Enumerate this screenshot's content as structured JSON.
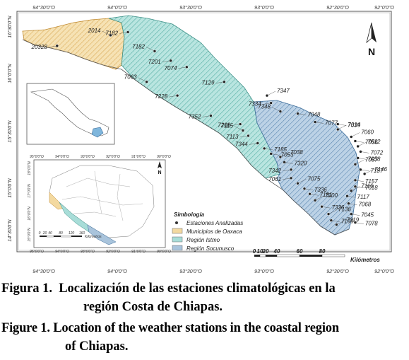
{
  "map": {
    "top_ticks": [
      "94°30'0\"O",
      "94°0'0\"O",
      "93°30'0\"O",
      "93°0'0\"O",
      "92°30'0\"O",
      "92°0'0\"O"
    ],
    "bottom_ticks": [
      "94°30'0\"O",
      "94°0'0\"O",
      "93°30'0\"O",
      "93°0'0\"O",
      "92°30'0\"O",
      "92°0'0\"O"
    ],
    "left_ticks": [
      "16°30'0\"N",
      "16°0'0\"N",
      "15°30'0\"N",
      "15°0'0\"N",
      "14°30'0\"N"
    ],
    "stations": [
      {
        "id": "2014",
        "lon": -94.05,
        "lat": 16.42
      },
      {
        "id": "20328",
        "lon": -94.45,
        "lat": 16.32
      },
      {
        "id": "7182",
        "lon": -93.92,
        "lat": 16.45
      },
      {
        "id": "7182",
        "lon": -93.72,
        "lat": 16.27
      },
      {
        "id": "7201",
        "lon": -93.6,
        "lat": 16.18
      },
      {
        "id": "7074",
        "lon": -93.48,
        "lat": 16.12
      },
      {
        "id": "7063",
        "lon": -93.78,
        "lat": 15.98
      },
      {
        "id": "7129",
        "lon": -93.2,
        "lat": 15.98
      },
      {
        "id": "7228",
        "lon": -93.55,
        "lat": 15.85
      },
      {
        "id": "7347",
        "lon": -92.88,
        "lat": 15.85
      },
      {
        "id": "7334",
        "lon": -92.85,
        "lat": 15.78
      },
      {
        "id": "7352",
        "lon": -93.3,
        "lat": 15.66
      },
      {
        "id": "7348",
        "lon": -92.78,
        "lat": 15.7
      },
      {
        "id": "7048",
        "lon": -92.65,
        "lat": 15.68
      },
      {
        "id": "7208",
        "lon": -93.08,
        "lat": 15.58
      },
      {
        "id": "7115",
        "lon": -93.06,
        "lat": 15.52
      },
      {
        "id": "7077",
        "lon": -92.52,
        "lat": 15.6
      },
      {
        "id": "7339",
        "lon": -92.35,
        "lat": 15.58
      },
      {
        "id": "7014",
        "lon": -92.35,
        "lat": 15.53
      },
      {
        "id": "7113",
        "lon": -93.02,
        "lat": 15.47
      },
      {
        "id": "7344",
        "lon": -92.95,
        "lat": 15.4
      },
      {
        "id": "7060",
        "lon": -92.25,
        "lat": 15.46
      },
      {
        "id": "7056",
        "lon": -92.22,
        "lat": 15.42
      },
      {
        "id": "7185",
        "lon": -92.9,
        "lat": 15.35
      },
      {
        "id": "7012",
        "lon": -92.2,
        "lat": 15.37
      },
      {
        "id": "7053",
        "lon": -92.85,
        "lat": 15.3
      },
      {
        "id": "7072",
        "lon": -92.18,
        "lat": 15.32
      },
      {
        "id": "7038",
        "lon": -92.78,
        "lat": 15.27
      },
      {
        "id": "7058",
        "lon": -92.2,
        "lat": 15.26
      },
      {
        "id": "7320",
        "lon": -92.75,
        "lat": 15.22
      },
      {
        "id": "7057",
        "lon": -92.22,
        "lat": 15.2
      },
      {
        "id": "7187",
        "lon": -92.18,
        "lat": 15.15
      },
      {
        "id": "7342",
        "lon": -92.7,
        "lat": 15.15
      },
      {
        "id": "7146",
        "lon": -92.15,
        "lat": 15.11
      },
      {
        "id": "7061",
        "lon": -92.7,
        "lat": 15.07
      },
      {
        "id": "7157",
        "lon": -92.22,
        "lat": 15.05
      },
      {
        "id": "7075",
        "lon": -92.65,
        "lat": 15.02
      },
      {
        "id": "7018",
        "lon": -92.22,
        "lat": 14.99
      },
      {
        "id": "7336",
        "lon": -92.6,
        "lat": 14.97
      },
      {
        "id": "7116",
        "lon": -92.25,
        "lat": 14.95
      },
      {
        "id": "7191",
        "lon": -92.56,
        "lat": 14.92
      },
      {
        "id": "7117",
        "lon": -92.28,
        "lat": 14.9
      },
      {
        "id": "7200",
        "lon": -92.52,
        "lat": 14.86
      },
      {
        "id": "7068",
        "lon": -92.27,
        "lat": 14.83
      },
      {
        "id": "7326",
        "lon": -92.47,
        "lat": 14.8
      },
      {
        "id": "7136",
        "lon": -92.42,
        "lat": 14.73
      },
      {
        "id": "7045",
        "lon": -92.25,
        "lat": 14.73
      },
      {
        "id": "7199",
        "lon": -92.4,
        "lat": 14.67
      },
      {
        "id": "7019",
        "lon": -92.36,
        "lat": 14.63
      },
      {
        "id": "7078",
        "lon": -92.22,
        "lat": 14.65
      }
    ],
    "north_label": "N",
    "legend": {
      "title": "Simbología",
      "items": [
        {
          "label": "Estaciones Analizadas",
          "color": "#333333"
        },
        {
          "label": "Municipios de Oaxaca",
          "color": "#f3d9a0"
        },
        {
          "label": "Región Istmo",
          "color": "#a8ddd8"
        },
        {
          "label": "Región Socunusco",
          "color": "#a9c4dc"
        }
      ]
    },
    "scale": {
      "ticks": [
        "0",
        "10",
        "20",
        "40",
        "60",
        "80"
      ],
      "unit": "Kilómetros"
    },
    "inset": {
      "top_ticks": [
        "95°0'0\"O",
        "94°0'0\"O",
        "93°0'0\"O",
        "92°0'0\"O",
        "91°0'0\"O",
        "90°0'0\"O"
      ],
      "bottom_ticks": [
        "95°0'0\"O",
        "94°0'0\"O",
        "93°0'0\"O",
        "92°0'0\"O",
        "91°0'0\"O",
        "90°0'0\"O"
      ],
      "left_ticks": [
        "18°0'0\"N",
        "17°0'0\"N",
        "16°0'0\"N",
        "15°0'0\"N"
      ],
      "north_label": "N",
      "scale_ticks": [
        "0",
        "20",
        "40",
        "80",
        "120",
        "160"
      ],
      "scale_unit": "Kilómetros"
    }
  },
  "captions": {
    "es_line1": "Figura 1.  Localización de las estaciones climatológicas en la",
    "es_line2": "región Costa de Chiapas.",
    "en_line1": "Figure 1. Location of the weather stations in the coastal region",
    "en_line2": "of Chiapas."
  }
}
